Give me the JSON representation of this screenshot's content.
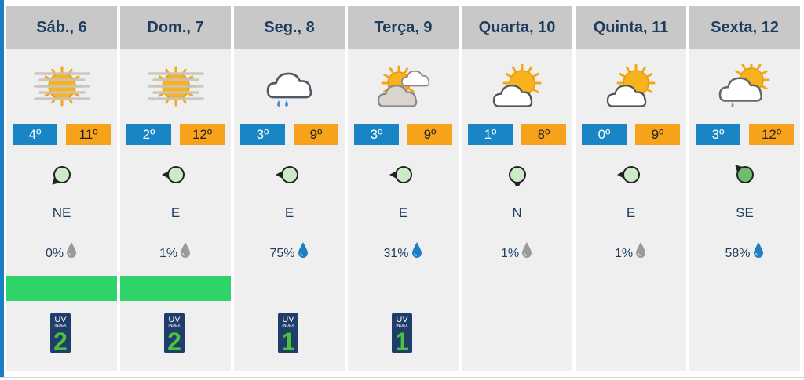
{
  "days": [
    {
      "label": "Sáb., 6",
      "min": "4º",
      "max": "11º",
      "dir": "NE",
      "precip": "0%",
      "icon": "haze-sun-icon",
      "wind_icon": "wind-ne-icon",
      "drop": "light-drop-icon",
      "bar": true,
      "uv": "2"
    },
    {
      "label": "Dom., 7",
      "min": "2º",
      "max": "12º",
      "dir": "E",
      "precip": "1%",
      "icon": "haze-sun-icon",
      "wind_icon": "wind-e-icon",
      "drop": "light-drop-icon",
      "bar": true,
      "uv": "2"
    },
    {
      "label": "Seg., 8",
      "min": "3º",
      "max": "9º",
      "dir": "E",
      "precip": "75%",
      "icon": "rain-cloud-icon",
      "wind_icon": "wind-e-icon",
      "drop": "blue-drop-icon",
      "bar": false,
      "uv": "1"
    },
    {
      "label": "Terça, 9",
      "min": "3º",
      "max": "9º",
      "dir": "E",
      "precip": "31%",
      "icon": "sun-cloud-icon",
      "wind_icon": "wind-e-icon",
      "drop": "blue-drop-icon",
      "bar": false,
      "uv": "1"
    },
    {
      "label": "Quarta, 10",
      "min": "1º",
      "max": "8º",
      "dir": "N",
      "precip": "1%",
      "icon": "partly-sunny-icon",
      "wind_icon": "wind-n-icon",
      "drop": "light-drop-icon",
      "bar": false,
      "uv": null
    },
    {
      "label": "Quinta, 11",
      "min": "0º",
      "max": "9º",
      "dir": "E",
      "precip": "1%",
      "icon": "partly-sunny-icon",
      "wind_icon": "wind-e-icon",
      "drop": "light-drop-icon",
      "bar": false,
      "uv": null
    },
    {
      "label": "Sexta, 12",
      "min": "3º",
      "max": "12º",
      "dir": "SE",
      "precip": "58%",
      "icon": "sun-cloud-rain-icon",
      "wind_icon": "wind-se-icon",
      "drop": "blue-drop-icon",
      "bar": false,
      "uv": null
    }
  ],
  "uv_label": "UV",
  "uv_sub": "INDEX",
  "colors": {
    "min_bg": "#1985c4",
    "max_bg": "#f7a21b",
    "header_bg": "#c8c8c8",
    "column_bg": "#efefef",
    "bar": "#2ed468",
    "uv_badge": "#1f3d6b",
    "uv_number": "#4cc13c",
    "text": "#1e3c5e"
  }
}
